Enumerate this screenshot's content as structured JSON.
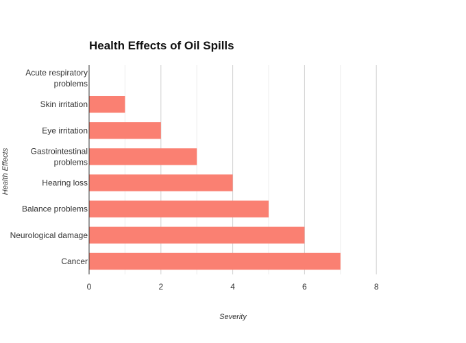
{
  "chart_data": {
    "type": "bar",
    "orientation": "horizontal",
    "title": "Health Effects of Oil Spills",
    "xlabel": "Severity",
    "ylabel": "Health Effects",
    "categories": [
      "Acute respiratory problems",
      "Skin irritation",
      "Eye irritation",
      "Gastrointestinal problems",
      "Hearing loss",
      "Balance problems",
      "Neurological damage",
      "Cancer"
    ],
    "category_lines": [
      [
        "Acute respiratory",
        "problems"
      ],
      [
        "Skin irritation"
      ],
      [
        "Eye irritation"
      ],
      [
        "Gastrointestinal",
        "problems"
      ],
      [
        "Hearing loss"
      ],
      [
        "Balance problems"
      ],
      [
        "Neurological damage"
      ],
      [
        "Cancer"
      ]
    ],
    "values": [
      0,
      1,
      2,
      3,
      4,
      5,
      6,
      7
    ],
    "xlim": [
      0,
      8.5
    ],
    "xticks": [
      0,
      2,
      4,
      6,
      8
    ],
    "grid": true,
    "bar_color": "#fa8072",
    "grid_color": "#dddddd",
    "axis_color": "#333333"
  }
}
